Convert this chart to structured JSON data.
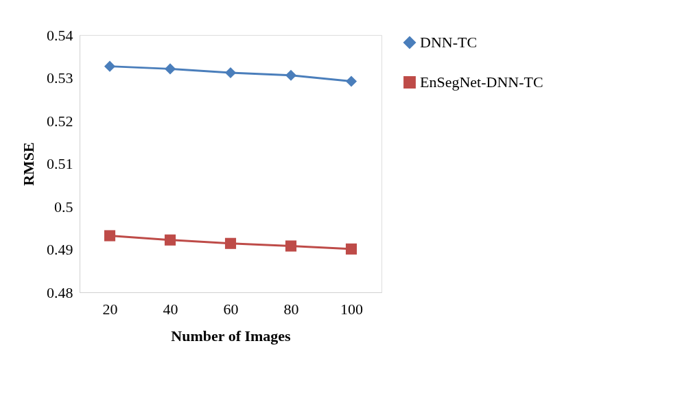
{
  "chart_data": {
    "type": "line",
    "xlabel": "Number of Images",
    "ylabel": "RMSE",
    "categories": [
      "20",
      "40",
      "60",
      "80",
      "100"
    ],
    "series": [
      {
        "name": "DNN-TC",
        "color": "#4a7ebb",
        "marker": "diamond",
        "values": [
          0.5327,
          0.5321,
          0.5312,
          0.5306,
          0.5292
        ]
      },
      {
        "name": "EnSegNet-DNN-TC",
        "color": "#be4b48",
        "marker": "square",
        "values": [
          0.4932,
          0.4922,
          0.4914,
          0.4908,
          0.4901
        ]
      }
    ],
    "ylim": [
      0.48,
      0.54
    ],
    "yticks": [
      0.48,
      0.49,
      0.5,
      0.51,
      0.52,
      0.53,
      0.54
    ],
    "grid": false,
    "legend": "right",
    "line_style": "solid"
  }
}
